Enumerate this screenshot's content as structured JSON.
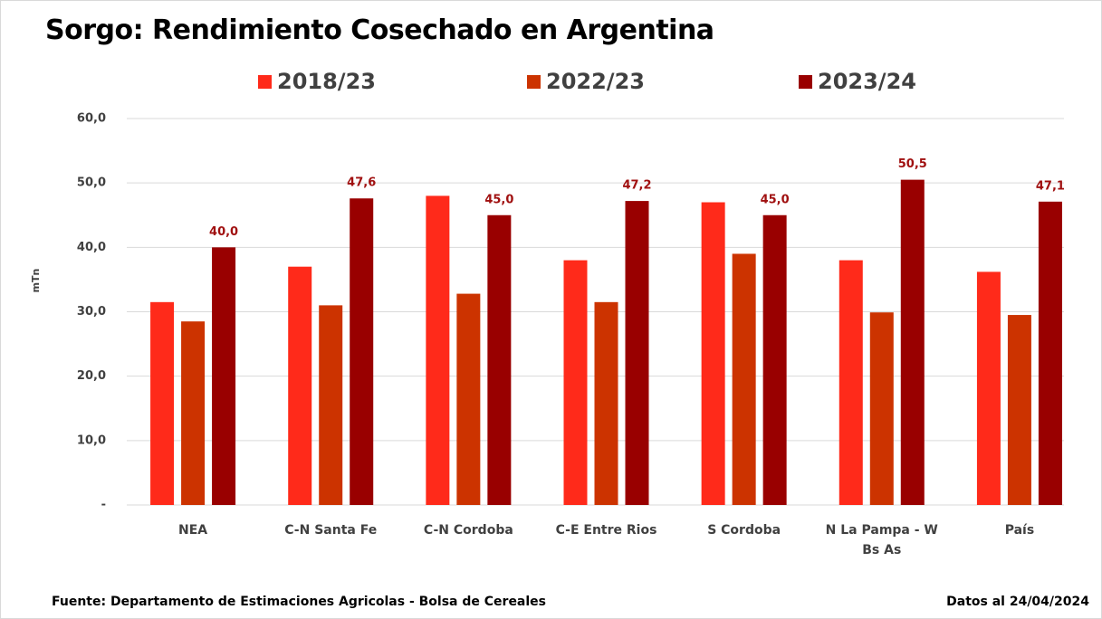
{
  "chart_data": {
    "type": "bar",
    "title": "Sorgo: Rendimiento Cosechado en Argentina",
    "y_label": "mTn",
    "categories": [
      "NEA",
      "C-N Santa Fe",
      "C-N Cordoba",
      "C-E Entre Rios",
      "S Cordoba",
      "N La Pampa - W Bs As",
      "País"
    ],
    "series": [
      {
        "name": "2018/23",
        "color": "#ff2a1a",
        "values": [
          31.5,
          37.0,
          48.0,
          38.0,
          47.0,
          38.0,
          36.2
        ]
      },
      {
        "name": "2022/23",
        "color": "#cc3300",
        "values": [
          28.5,
          31.0,
          32.8,
          31.5,
          39.0,
          29.9,
          29.5
        ]
      },
      {
        "name": "2023/24",
        "color": "#990000",
        "values": [
          40.0,
          47.6,
          45.0,
          47.2,
          45.0,
          50.5,
          47.1
        ],
        "value_labels": [
          "40,0",
          "47,6",
          "45,0",
          "47,2",
          "45,0",
          "50,5",
          "47,1"
        ],
        "label_color": "#a01010"
      }
    ],
    "ylim": [
      0,
      60
    ],
    "yticks": [
      {
        "value": 0,
        "label": "-"
      },
      {
        "value": 10,
        "label": "10,0"
      },
      {
        "value": 20,
        "label": "20,0"
      },
      {
        "value": 30,
        "label": "30,0"
      },
      {
        "value": 40,
        "label": "40,0"
      },
      {
        "value": 50,
        "label": "50,0"
      },
      {
        "value": 60,
        "label": "60,0"
      }
    ],
    "grid": true,
    "source": "Fuente: Departamento de Estimaciones Agricolas - Bolsa de Cereales",
    "date_note": "Datos al 24/04/2024"
  }
}
